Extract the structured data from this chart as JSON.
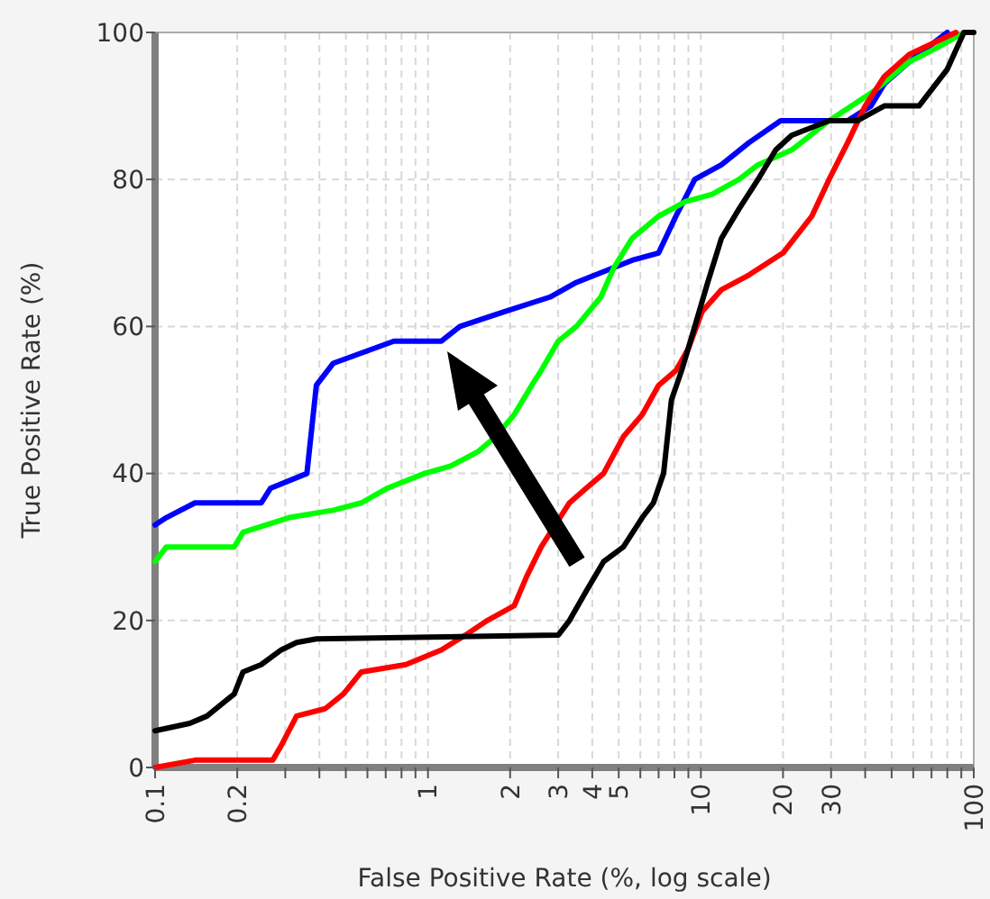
{
  "chart_data": {
    "type": "line",
    "xlabel": "False Positive Rate (%, log scale)",
    "ylabel": "True Positive Rate (%)",
    "log": "x",
    "xlim": [
      0.1,
      100
    ],
    "ylim": [
      0,
      100
    ],
    "xticks": [
      0.1,
      0.2,
      {
        "value": 0.3,
        "label": null
      },
      {
        "value": 0.4,
        "label": null
      },
      {
        "value": 0.5,
        "label": null
      },
      {
        "value": 0.6,
        "label": null
      },
      {
        "value": 0.7,
        "label": null
      },
      {
        "value": 0.8,
        "label": null
      },
      {
        "value": 0.9,
        "label": null
      },
      1,
      2,
      3,
      4,
      5,
      {
        "value": 6,
        "label": null
      },
      {
        "value": 7,
        "label": null
      },
      {
        "value": 8,
        "label": null
      },
      {
        "value": 9,
        "label": null
      },
      10,
      20,
      30,
      {
        "value": 40,
        "label": null
      },
      {
        "value": 50,
        "label": null
      },
      {
        "value": 60,
        "label": null
      },
      {
        "value": 70,
        "label": null
      },
      {
        "value": 80,
        "label": null
      },
      {
        "value": 90,
        "label": null
      },
      100
    ],
    "yticks": [
      0,
      20,
      40,
      60,
      80,
      100
    ],
    "grid": true,
    "series": [
      {
        "color": "#0000ff",
        "x": [
          0.1,
          0.11,
          0.14,
          0.245,
          0.265,
          0.36,
          0.39,
          0.45,
          0.75,
          1.12,
          1.31,
          1.9,
          2.8,
          3.5,
          4.1,
          5.6,
          7,
          8.1,
          9.5,
          11.9,
          15,
          19.6,
          34.5,
          42,
          47,
          58,
          68,
          80
        ],
        "values": [
          33,
          34,
          36,
          36,
          38,
          40,
          52,
          55,
          58,
          58,
          60,
          62,
          64,
          66,
          67,
          69,
          70,
          75,
          80,
          82,
          85,
          88,
          88,
          90,
          93,
          96,
          98,
          100
        ]
      },
      {
        "color": "#00ff00",
        "x": [
          0.1,
          0.11,
          0.195,
          0.21,
          0.31,
          0.45,
          0.57,
          0.71,
          0.97,
          1.21,
          1.53,
          1.77,
          2.07,
          2.4,
          2.6,
          3.0,
          3.5,
          4.3,
          4.8,
          5.6,
          7,
          8.8,
          11,
          13.8,
          16.2,
          21.5,
          29.5,
          43,
          58,
          74,
          92
        ],
        "values": [
          28,
          30,
          30,
          32,
          34,
          35,
          36,
          38,
          40,
          41,
          43,
          45,
          48,
          52,
          54,
          58,
          60,
          64,
          68,
          72,
          75,
          77,
          78,
          80,
          82,
          84,
          88,
          92,
          96,
          98,
          100
        ]
      },
      {
        "color": "#ff0000",
        "x": [
          0.1,
          0.14,
          0.27,
          0.29,
          0.33,
          0.42,
          0.49,
          0.57,
          0.83,
          1.12,
          1.37,
          1.65,
          2.07,
          2.3,
          2.6,
          3.3,
          3.8,
          4.4,
          5.2,
          6.1,
          7,
          8.1,
          9.0,
          10.1,
          11.9,
          15,
          20,
          25.5,
          29.5,
          34.5,
          40,
          47,
          58,
          86
        ],
        "values": [
          0,
          1,
          1,
          3,
          7,
          8,
          10,
          13,
          14,
          16,
          18,
          20,
          22,
          26,
          30,
          36,
          38,
          40,
          45,
          48,
          52,
          54,
          57,
          62,
          65,
          67,
          70,
          75,
          80,
          85,
          90,
          94,
          97,
          100
        ]
      },
      {
        "color": "#000000",
        "x": [
          0.1,
          0.134,
          0.155,
          0.195,
          0.21,
          0.245,
          0.29,
          0.33,
          0.39,
          3.0,
          3.3,
          3.8,
          4.4,
          5.2,
          6.1,
          6.7,
          7.3,
          7.8,
          8.5,
          9.5,
          10.6,
          11.9,
          13.8,
          16.2,
          18.8,
          21.5,
          29.5,
          37.5,
          47,
          63,
          80,
          92,
          100
        ],
        "values": [
          5,
          6,
          7,
          10,
          13,
          14,
          16,
          17,
          17.5,
          18,
          20,
          24,
          28,
          30,
          34,
          36,
          40,
          50,
          54,
          60,
          66,
          72,
          76,
          80,
          84,
          86,
          88,
          88,
          90,
          90,
          95,
          100,
          100
        ]
      }
    ]
  }
}
